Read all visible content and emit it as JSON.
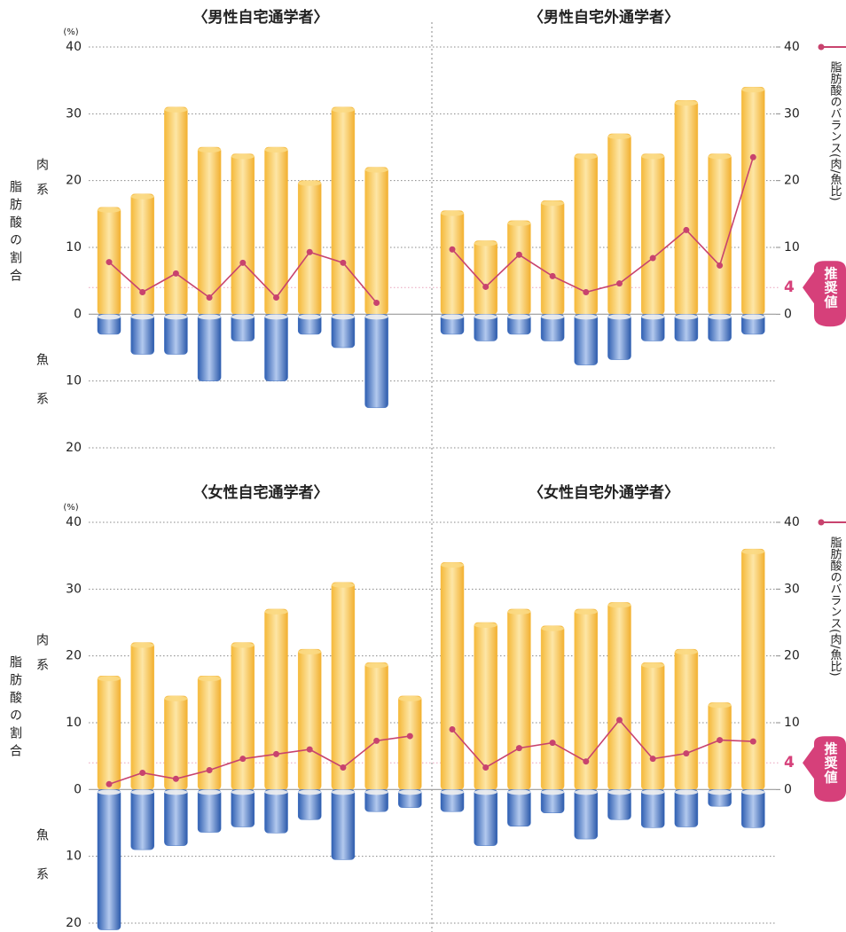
{
  "chart_data": [
    {
      "type": "bar",
      "yunit": "(%)",
      "ylabel": "脂肪酸の割合",
      "series_names": [
        "肉系",
        "魚系",
        "脂肪酸のバランス(肉/魚比)"
      ],
      "ylim": [
        -20,
        40
      ],
      "yticks": [
        {
          "value": -20,
          "label": "20"
        },
        {
          "value": -10,
          "label": "10"
        },
        0,
        10,
        20,
        30,
        40
      ],
      "y2lim": [
        -20,
        40
      ],
      "y2ticks": [
        0,
        10,
        20,
        30,
        40
      ],
      "recommended": {
        "value": 4,
        "label": "推奨値"
      },
      "grid": true,
      "panels": [
        {
          "title": "〈男性自宅通学者〉",
          "series": [
            {
              "color": "#f7c04f",
              "values": [
                16,
                18,
                31,
                25,
                24,
                25,
                20,
                31,
                22
              ]
            },
            {
              "color": "#3f6fc0",
              "values": [
                -3,
                -6,
                -6,
                -10,
                -4,
                -10,
                -3,
                -5,
                -14
              ]
            },
            {
              "color": "#c8436e",
              "axis": "y2",
              "values": [
                7.8,
                3.3,
                6.1,
                2.5,
                7.7,
                2.5,
                9.3,
                7.7,
                1.7
              ]
            }
          ]
        },
        {
          "title": "〈男性自宅外通学者〉",
          "series": [
            {
              "color": "#f7c04f",
              "values": [
                15.5,
                11,
                14,
                17,
                24,
                27,
                24,
                32,
                24,
                34
              ]
            },
            {
              "color": "#3f6fc0",
              "values": [
                -3,
                -4,
                -3,
                -4,
                -7.6,
                -6.8,
                -4,
                -4,
                -4,
                -3
              ]
            },
            {
              "color": "#c8436e",
              "axis": "y2",
              "values": [
                9.7,
                4.1,
                8.9,
                5.7,
                3.3,
                4.6,
                8.4,
                12.6,
                7.3,
                23.5
              ]
            }
          ]
        }
      ]
    },
    {
      "type": "bar",
      "yunit": "(%)",
      "ylabel": "脂肪酸の割合",
      "series_names": [
        "肉系",
        "魚系",
        "脂肪酸のバランス(肉/魚比)"
      ],
      "ylim": [
        -20,
        40
      ],
      "yticks": [
        {
          "value": -20,
          "label": "20"
        },
        {
          "value": -10,
          "label": "10"
        },
        0,
        10,
        20,
        30,
        40
      ],
      "y2lim": [
        -20,
        40
      ],
      "y2ticks": [
        0,
        10,
        20,
        30,
        40
      ],
      "recommended": {
        "value": 4,
        "label": "推奨値"
      },
      "grid": true,
      "panels": [
        {
          "title": "〈女性自宅通学者〉",
          "series": [
            {
              "color": "#f7c04f",
              "values": [
                17,
                22,
                14,
                17,
                22,
                27,
                21,
                31,
                19,
                14
              ]
            },
            {
              "color": "#3f6fc0",
              "values": [
                -21,
                -9,
                -8.4,
                -6.4,
                -5.6,
                -6.5,
                -4.5,
                -10.5,
                -3.3,
                -2.7
              ]
            },
            {
              "color": "#c8436e",
              "axis": "y2",
              "values": [
                0.8,
                2.5,
                1.6,
                2.9,
                4.6,
                5.3,
                6,
                3.3,
                7.3,
                8
              ]
            }
          ]
        },
        {
          "title": "〈女性自宅外通学者〉",
          "series": [
            {
              "color": "#f7c04f",
              "values": [
                34,
                25,
                27,
                24.5,
                27,
                28,
                19,
                21,
                13,
                36
              ]
            },
            {
              "color": "#3f6fc0",
              "values": [
                -3.3,
                -8.4,
                -5.5,
                -3.5,
                -7.4,
                -4.5,
                -5.7,
                -5.6,
                -2.5,
                -5.7
              ]
            },
            {
              "color": "#c8436e",
              "axis": "y2",
              "values": [
                9,
                3.3,
                6.2,
                7,
                4.2,
                10.4,
                4.6,
                5.4,
                7.4,
                7.2
              ]
            }
          ]
        }
      ]
    }
  ]
}
